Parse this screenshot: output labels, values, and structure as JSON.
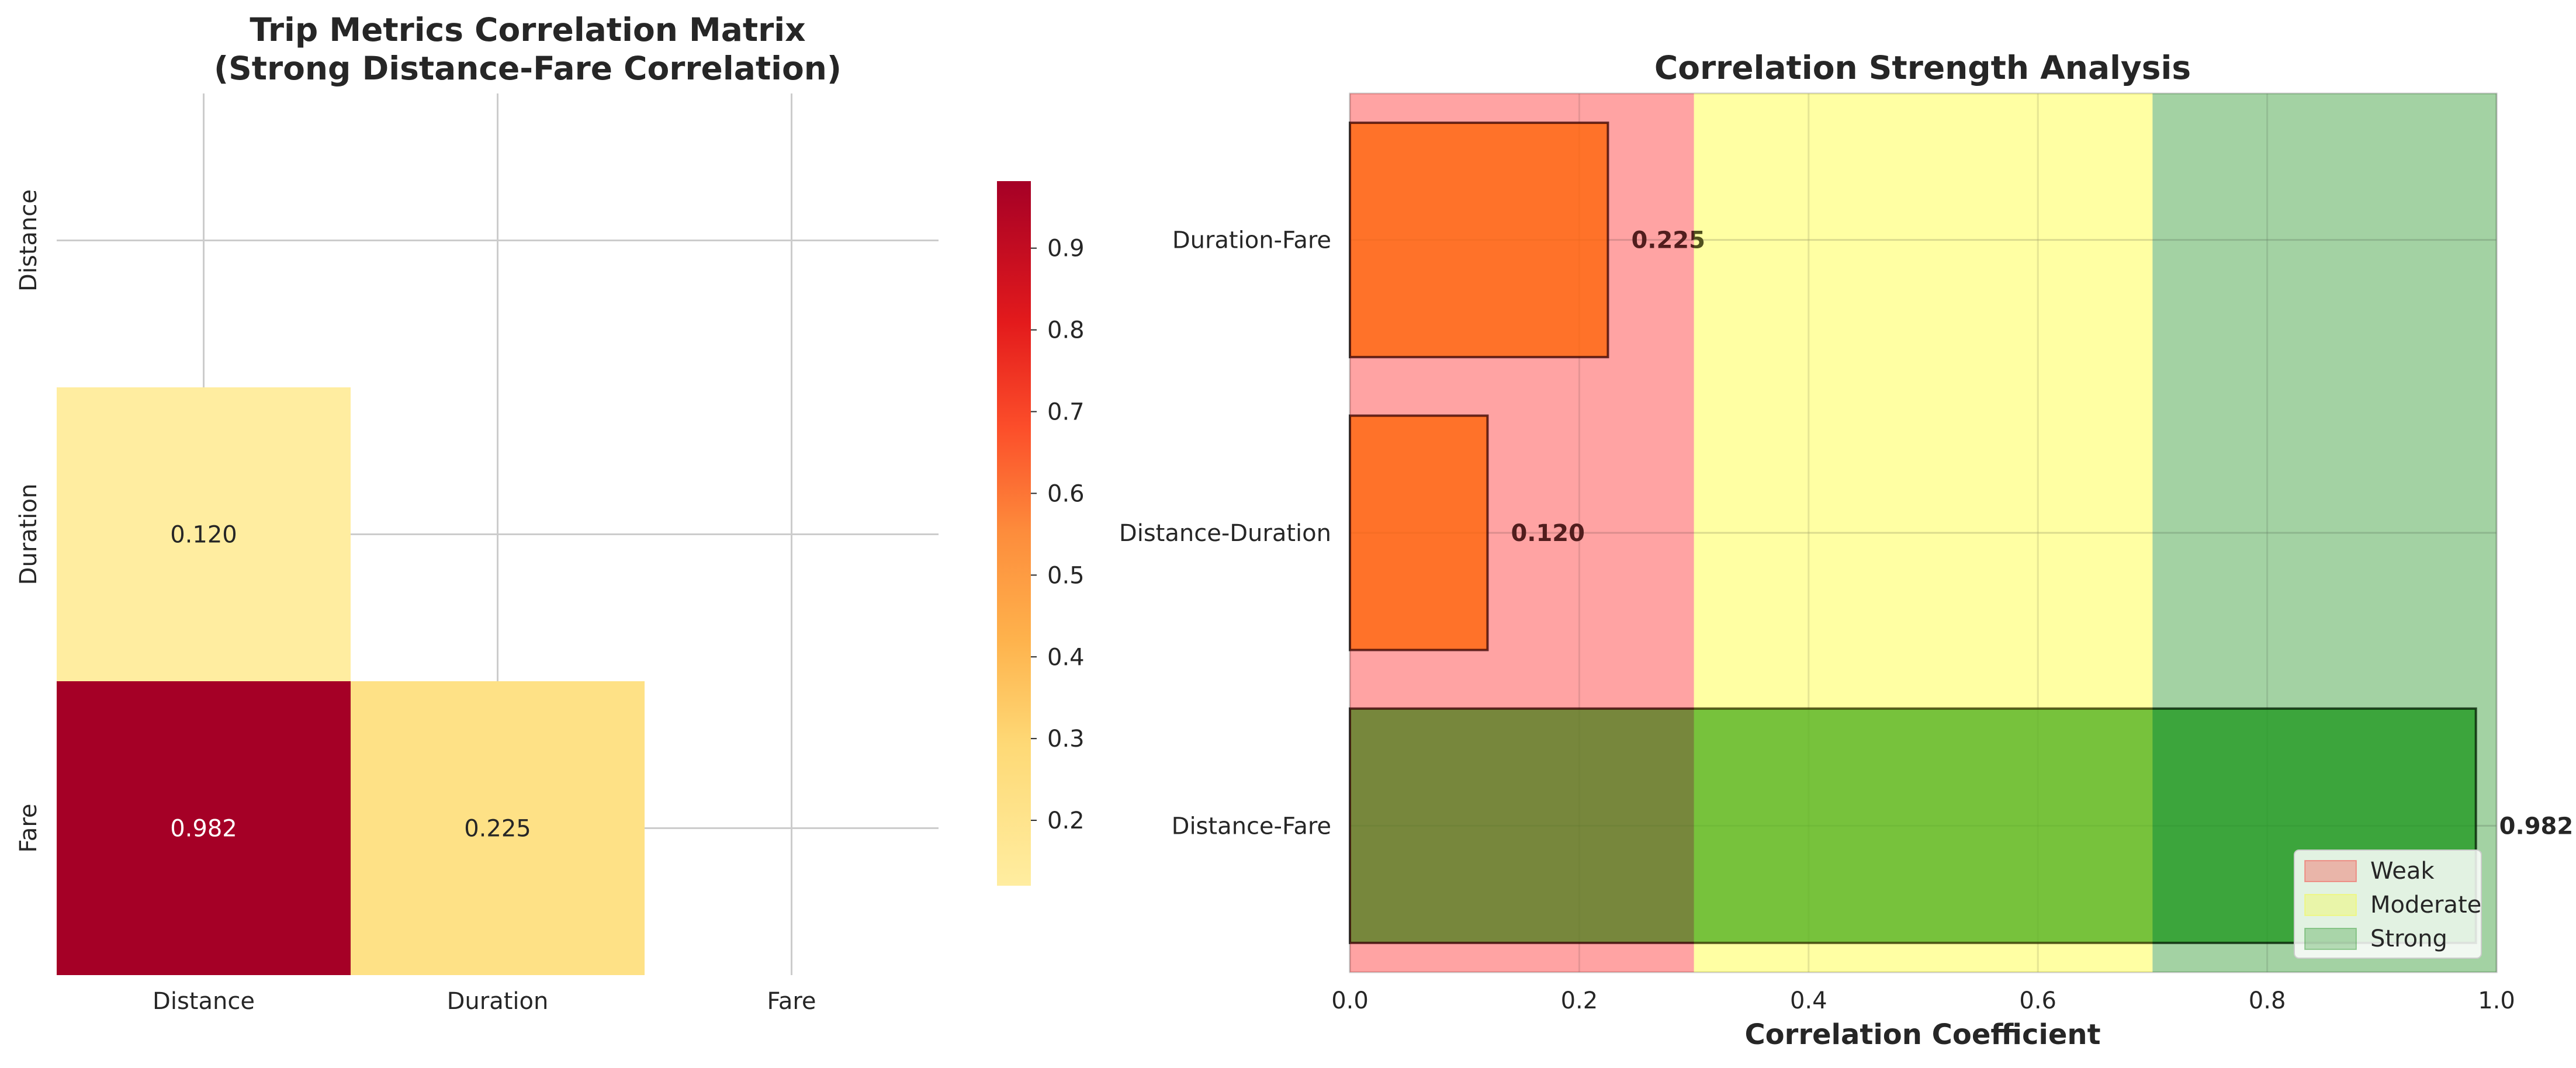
{
  "chart_data": [
    {
      "type": "heatmap",
      "title_line1": "Trip Metrics Correlation Matrix",
      "title_line2": "(Strong Distance-Fare Correlation)",
      "rows": [
        "Distance",
        "Duration",
        "Fare"
      ],
      "cols": [
        "Distance",
        "Duration",
        "Fare"
      ],
      "cells": [
        {
          "row": "Duration",
          "col": "Distance",
          "value": 0.12,
          "label": "0.120"
        },
        {
          "row": "Fare",
          "col": "Distance",
          "value": 0.982,
          "label": "0.982"
        },
        {
          "row": "Fare",
          "col": "Duration",
          "value": 0.225,
          "label": "0.225"
        }
      ],
      "mask": "upper-triangle-and-diagonal",
      "colormap": "YlOrRd",
      "colorbar": {
        "min": 0.12,
        "max": 0.982,
        "ticks": [
          "0.2",
          "0.3",
          "0.4",
          "0.5",
          "0.6",
          "0.7",
          "0.8",
          "0.9"
        ]
      }
    },
    {
      "type": "bar",
      "orientation": "horizontal",
      "title": "Correlation Strength Analysis",
      "xlabel": "Correlation Coefficient",
      "xlim": [
        0,
        1
      ],
      "xticks": [
        "0.0",
        "0.2",
        "0.4",
        "0.6",
        "0.8",
        "1.0"
      ],
      "categories": [
        "Distance-Fare",
        "Distance-Duration",
        "Duration-Fare"
      ],
      "values": [
        0.982,
        0.12,
        0.225
      ],
      "value_labels": [
        "0.982",
        "0.120",
        "0.225"
      ],
      "bar_colors": [
        "#2ca02c",
        "#ff7f0e",
        "#ff7f0e"
      ],
      "bands": [
        {
          "name": "Weak",
          "from": 0.0,
          "to": 0.3,
          "color": "#ff0000"
        },
        {
          "name": "Moderate",
          "from": 0.3,
          "to": 0.7,
          "color": "#ffff00"
        },
        {
          "name": "Strong",
          "from": 0.7,
          "to": 1.0,
          "color": "#008000"
        }
      ],
      "legend_position": "lower right",
      "grid": true
    }
  ]
}
